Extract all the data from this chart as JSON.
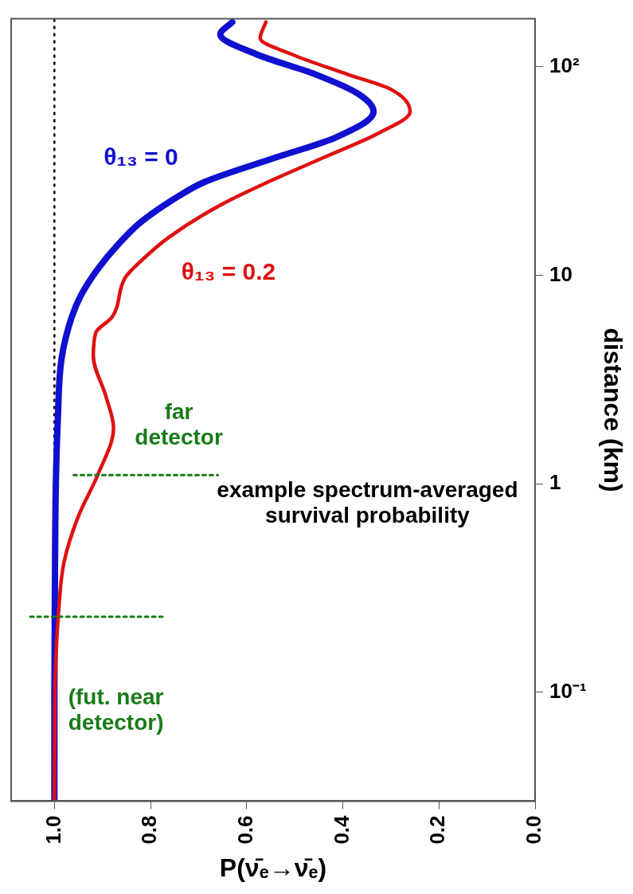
{
  "chart_data": {
    "type": "line",
    "ylabel": "distance (km)",
    "xlabel": "P(ν̄ₑ→ν̄ₑ)",
    "log": "y",
    "ylim": [
      0.03,
      170
    ],
    "yticks": [
      {
        "value": 0.1,
        "label": "10⁻¹"
      },
      1,
      10,
      {
        "value": 100,
        "label": "10²"
      }
    ],
    "xlim": [
      1.09,
      0
    ],
    "xticks": [
      {
        "value": 1,
        "label": "1.0"
      },
      0.8,
      0.6,
      0.4,
      0.2,
      {
        "value": 0,
        "label": "0.0"
      }
    ],
    "legend": false,
    "line_style": "solid",
    "series": [
      {
        "name": "θ₁₃ = 0",
        "color": "#1010d0",
        "values": [
          0.03,
          0.1,
          0.3,
          1,
          2,
          4,
          6.3,
          8,
          10.7,
          14,
          18,
          23.7,
          28,
          36.7,
          45.7,
          61,
          74,
          92,
          115,
          143,
          164
        ],
        "x": [
          1.0,
          1.0,
          0.999,
          0.997,
          0.993,
          0.985,
          0.964,
          0.945,
          0.91,
          0.868,
          0.82,
          0.745,
          0.688,
          0.54,
          0.416,
          0.336,
          0.367,
          0.457,
          0.58,
          0.655,
          0.63
        ]
      },
      {
        "name": "θ₁₃ = 0.2",
        "color": "#e01010",
        "values": [
          0.03,
          0.1,
          0.23,
          0.42,
          0.7,
          1.1,
          1.85,
          2.63,
          4.1,
          5.3,
          6.3,
          9.8,
          11.7,
          15.2,
          21.7,
          28,
          36.7,
          48,
          61,
          78,
          92,
          115,
          137,
          164
        ],
        "x": [
          1.0,
          0.999,
          0.992,
          0.98,
          0.95,
          0.91,
          0.877,
          0.893,
          0.919,
          0.914,
          0.88,
          0.852,
          0.82,
          0.762,
          0.655,
          0.556,
          0.44,
          0.326,
          0.26,
          0.3,
          0.39,
          0.507,
          0.572,
          0.56
        ]
      },
      {
        "color": "#1a7a1a",
        "line_style": "dotted",
        "x": [
          1.05,
          0.77
        ],
        "values": [
          0.23,
          0.23
        ]
      },
      {
        "color": "#1a7a1a",
        "line_style": "dotted",
        "x": [
          0.96,
          0.66
        ],
        "values": [
          1.1,
          1.1
        ]
      }
    ],
    "ref_lines": [
      {
        "axis": "x",
        "value": 1,
        "color": "#000000",
        "line_style": "dotted"
      }
    ],
    "annotations": [
      "(fut. near\ndetector)",
      "far\ndetector",
      "example spectrum-averaged\nsurvival probability"
    ]
  }
}
